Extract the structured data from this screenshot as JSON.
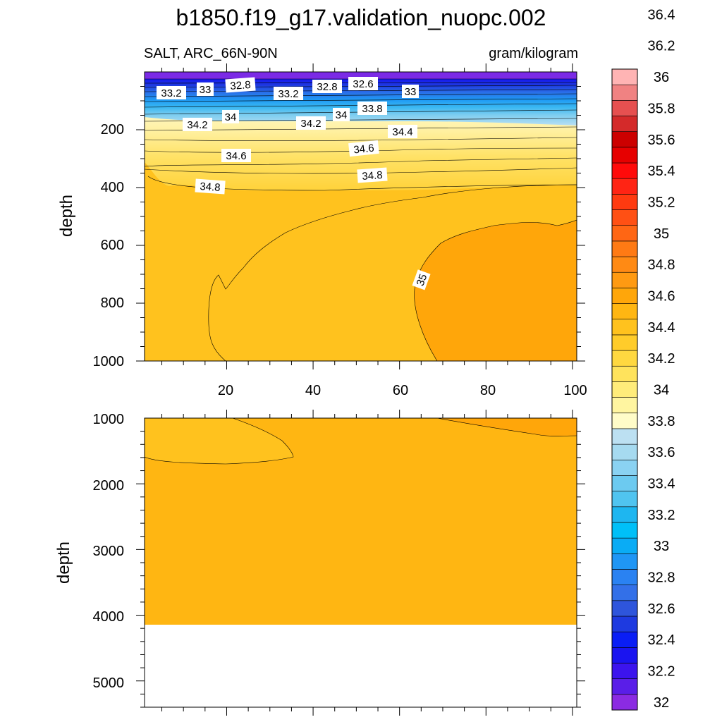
{
  "chart_data": {
    "type": "contour",
    "title": "b1850.f19_g17.validation_nuopc.002",
    "variable_label": "SALT, ARC_66N-90N",
    "units_label": "gram/kilogram",
    "colorbar": {
      "levels": [
        32,
        32.2,
        32.4,
        32.6,
        32.8,
        33,
        33.2,
        33.4,
        33.6,
        33.8,
        34,
        34.2,
        34.4,
        34.6,
        34.8,
        35,
        35.2,
        35.4,
        35.6,
        35.8,
        36,
        36.2,
        36.4
      ],
      "tick_labels": [
        "32",
        "32.2",
        "32.4",
        "32.6",
        "32.8",
        "33",
        "33.2",
        "33.4",
        "33.6",
        "33.8",
        "34",
        "34.2",
        "34.4",
        "34.6",
        "34.8",
        "35",
        "35.2",
        "35.4",
        "35.6",
        "35.8",
        "36",
        "36.2",
        "36.4"
      ],
      "colors": [
        "#8b2be2",
        "#5a1ee8",
        "#3c14ee",
        "#1a14f0",
        "#0a1ef5",
        "#1e3ae0",
        "#2e55dc",
        "#3370e8",
        "#2a82f2",
        "#1f96f5",
        "#0aacf5",
        "#00c0f8",
        "#1eb6f0",
        "#50c4f0",
        "#6ccaf0",
        "#8ad2f2",
        "#a6daf0",
        "#bce0f2",
        "#fffcc8",
        "#fff5a0",
        "#ffec7a",
        "#ffe35c",
        "#ffd840",
        "#ffcc2a",
        "#ffc21e",
        "#ffb612",
        "#ffa60a",
        "#ff9a12",
        "#ff8a14",
        "#ff7a14",
        "#ff6614",
        "#ff5014",
        "#ff3a10",
        "#ff2414",
        "#ff0a0a",
        "#e60000",
        "#cc0000",
        "#d42a2a",
        "#e65050",
        "#f08282",
        "#ffb4b4"
      ]
    },
    "upper_panel": {
      "x": {
        "range": [
          1,
          101
        ],
        "ticks": [
          20,
          40,
          60,
          80,
          100
        ],
        "tick_labels": [
          "20",
          "40",
          "60",
          "80",
          "100"
        ]
      },
      "y": {
        "label": "depth",
        "range": [
          0,
          1000
        ],
        "ticks": [
          200,
          400,
          600,
          800,
          1000
        ],
        "tick_labels": [
          "200",
          "400",
          "600",
          "800",
          "1000"
        ]
      },
      "contour_labels": [
        "33.2",
        "33",
        "32.8",
        "33.2",
        "32.8",
        "32.6",
        "33",
        "34",
        "34.2",
        "34.2",
        "34",
        "33.8",
        "34.4",
        "34.6",
        "34.6",
        "34.8",
        "34.8",
        "35"
      ]
    },
    "lower_panel": {
      "x": {
        "range": [
          1,
          101
        ],
        "ticks": [
          20,
          40,
          60,
          80,
          100
        ]
      },
      "y": {
        "label": "depth",
        "range": [
          1000,
          5400
        ],
        "ticks": [
          1000,
          2000,
          3000,
          4000,
          5000
        ],
        "tick_labels": [
          "1000",
          "2000",
          "3000",
          "4000",
          "5000"
        ]
      },
      "ocean_bottom_depth": 4120
    }
  }
}
